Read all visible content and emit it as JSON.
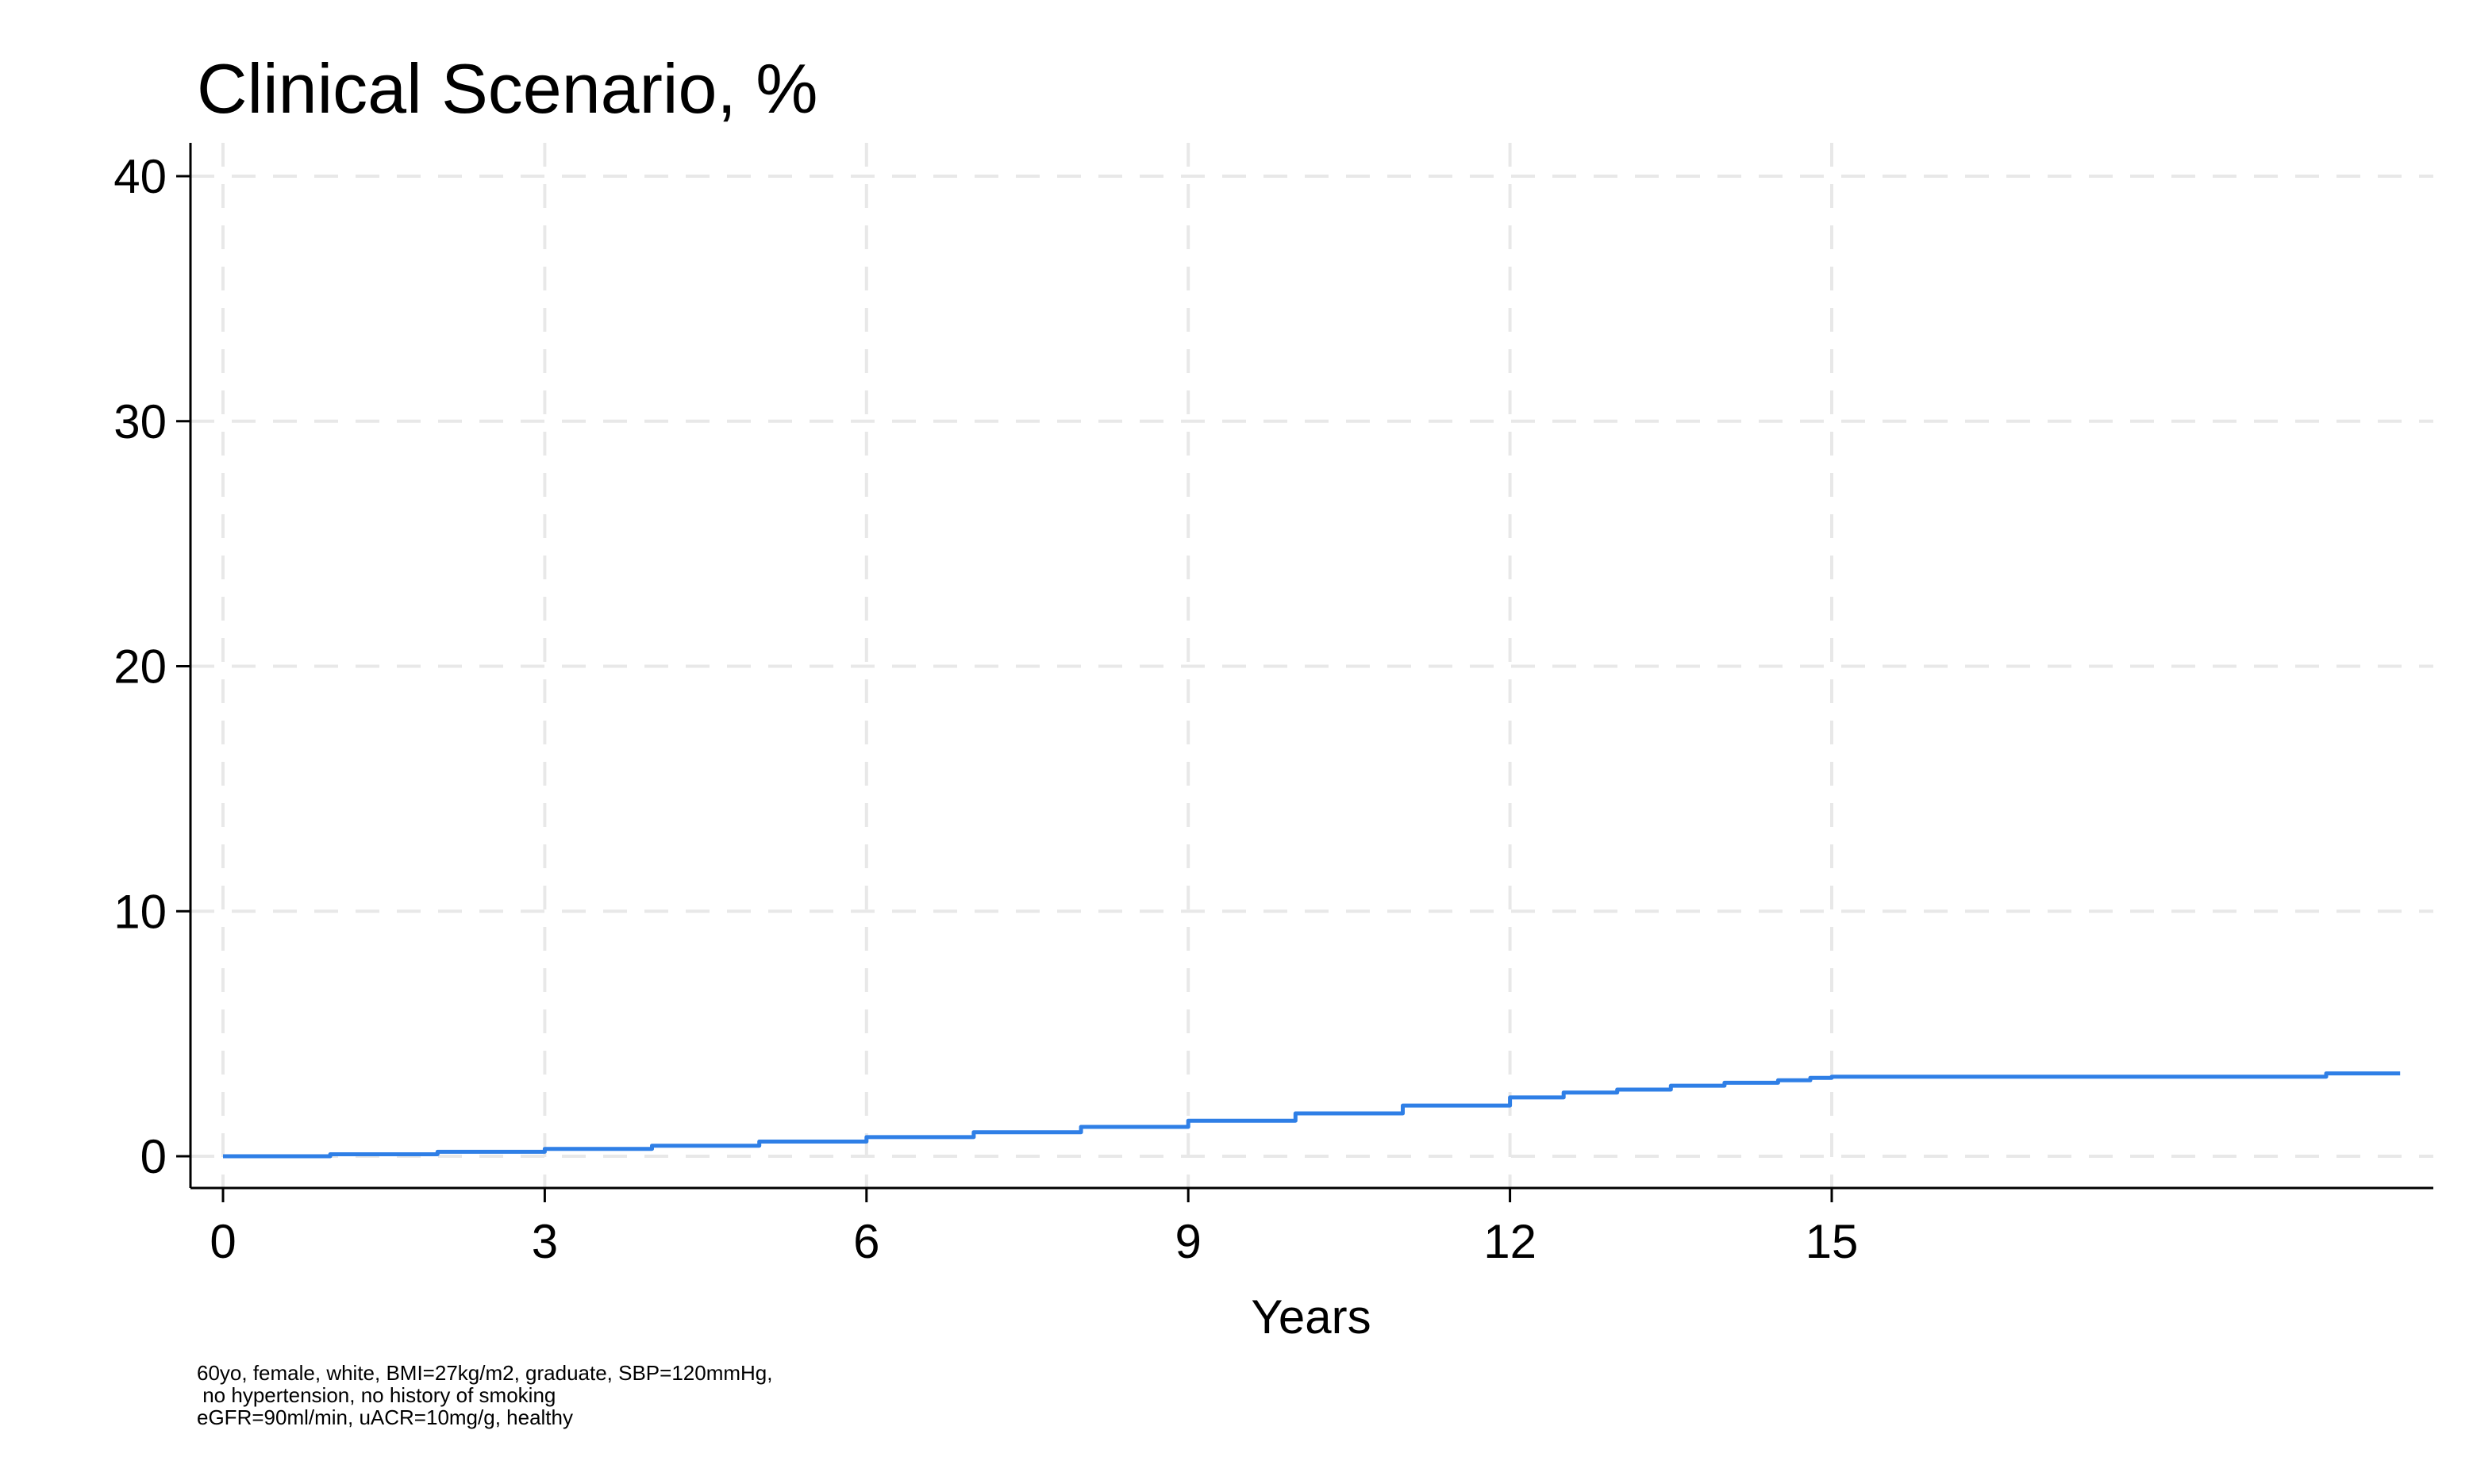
{
  "chart_data": {
    "type": "line",
    "title": "Clinical Scenario, %",
    "xlabel": "Years",
    "ylabel": "",
    "xlim": [
      0,
      20.6
    ],
    "ylim": [
      -1.2,
      41.3
    ],
    "xticks": [
      0,
      3,
      6,
      9,
      12,
      15
    ],
    "yticks": [
      0,
      10,
      20,
      30,
      40
    ],
    "x_tick_labels": [
      "0",
      "3",
      "6",
      "9",
      "12",
      "15"
    ],
    "y_tick_labels": [
      "0",
      "10",
      "20",
      "30",
      "40"
    ],
    "grid": true,
    "legend": "none",
    "series": [
      {
        "color": "#2f7fe6",
        "step": true,
        "x": [
          0,
          1,
          2,
          3,
          4,
          5,
          6,
          7,
          8,
          9,
          10,
          11,
          12,
          12.5,
          13,
          13.5,
          14,
          14.5,
          14.8,
          15,
          16,
          17,
          18,
          19,
          19.6,
          19.61,
          20.3
        ],
        "y": [
          0,
          0.08,
          0.18,
          0.3,
          0.43,
          0.6,
          0.78,
          0.98,
          1.2,
          1.45,
          1.75,
          2.07,
          2.4,
          2.6,
          2.72,
          2.88,
          3.0,
          3.1,
          3.2,
          3.25,
          3.25,
          3.25,
          3.25,
          3.25,
          3.25,
          3.38,
          3.38
        ]
      }
    ]
  },
  "footnote": {
    "line1": "60yo, female, white, BMI=27kg/m2, graduate, SBP=120mmHg,",
    "line2": " no hypertension, no history of smoking",
    "line3": "eGFR=90ml/min, uACR=10mg/g, healthy"
  },
  "colors": {
    "line": "#2f7fe6",
    "grid": "#e8e8e8",
    "axis": "#000000",
    "background": "#ffffff"
  }
}
